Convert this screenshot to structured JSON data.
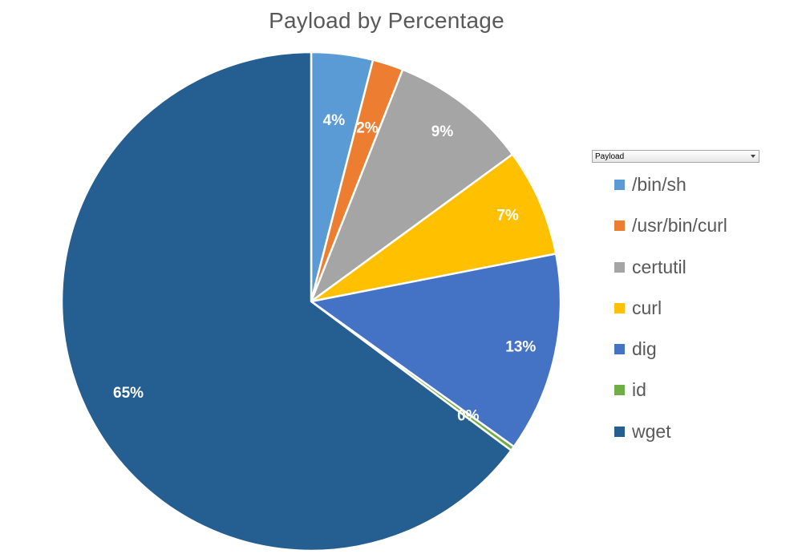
{
  "chart_data": {
    "type": "pie",
    "title": "Payload by Percentage",
    "filter": {
      "label": "Payload"
    },
    "slices": [
      {
        "name": "/bin/sh",
        "value": 4,
        "label": "4%",
        "color": "#5B9BD5"
      },
      {
        "name": "/usr/bin/curl",
        "value": 2,
        "label": "2%",
        "color": "#ED7D31"
      },
      {
        "name": "certutil",
        "value": 9,
        "label": "9%",
        "color": "#A5A5A5"
      },
      {
        "name": "curl",
        "value": 7,
        "label": "7%",
        "color": "#FFC000"
      },
      {
        "name": "dig",
        "value": 13,
        "label": "13%",
        "color": "#4472C4"
      },
      {
        "name": "id",
        "value": 0.3,
        "label": "0%",
        "color": "#70AD47"
      },
      {
        "name": "wget",
        "value": 65,
        "label": "65%",
        "color": "#255E91"
      }
    ],
    "legend_position": "right"
  }
}
